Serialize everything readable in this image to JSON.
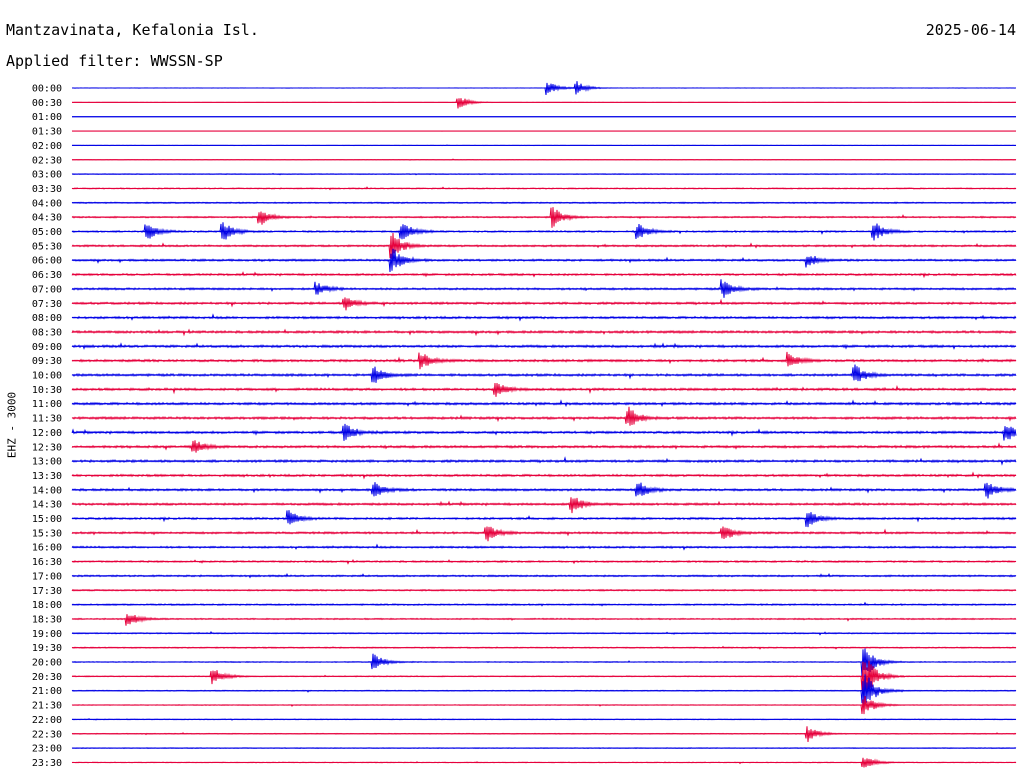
{
  "header": {
    "station": "Mantzavinata, Kefalonia Isl.",
    "date": "2025-06-14",
    "filter": "Applied filter: WWSSN-SP",
    "channel": "EHZ - 3000"
  },
  "colors": {
    "blue": "#0000e6",
    "red": "#e6003c"
  },
  "chart_data": {
    "type": "line",
    "plot_kind": "helicorder",
    "y_tick_labels": [
      "00:00",
      "00:30",
      "01:00",
      "01:30",
      "02:00",
      "02:30",
      "03:00",
      "03:30",
      "04:00",
      "04:30",
      "05:00",
      "05:30",
      "06:00",
      "06:30",
      "07:00",
      "07:30",
      "08:00",
      "08:30",
      "09:00",
      "09:30",
      "10:00",
      "10:30",
      "11:00",
      "11:30",
      "12:00",
      "12:30",
      "13:00",
      "13:30",
      "14:00",
      "14:30",
      "15:00",
      "15:30",
      "16:00",
      "16:30",
      "17:00",
      "17:30",
      "18:00",
      "18:30",
      "19:00",
      "19:30",
      "20:00",
      "20:30",
      "21:00",
      "21:30",
      "22:00",
      "22:30",
      "23:00",
      "23:30"
    ],
    "trace_colors_alternate": [
      "blue",
      "red"
    ],
    "trace_noise_level": [
      0.05,
      0.05,
      0.05,
      0.05,
      0.1,
      0.15,
      0.25,
      0.35,
      0.4,
      0.45,
      0.5,
      0.55,
      0.6,
      0.6,
      0.6,
      0.65,
      0.65,
      0.7,
      0.7,
      0.7,
      0.7,
      0.7,
      0.7,
      0.7,
      0.7,
      0.7,
      0.7,
      0.65,
      0.65,
      0.65,
      0.6,
      0.6,
      0.55,
      0.5,
      0.5,
      0.45,
      0.45,
      0.4,
      0.35,
      0.35,
      0.3,
      0.3,
      0.3,
      0.25,
      0.25,
      0.25,
      0.25,
      0.25
    ],
    "events": [
      {
        "row": 0,
        "x": 0.505,
        "amp": 1.0
      },
      {
        "row": 0,
        "x": 0.535,
        "amp": 1.0
      },
      {
        "row": 1,
        "x": 0.41,
        "amp": 1.0
      },
      {
        "row": 9,
        "x": 0.2,
        "amp": 1.2
      },
      {
        "row": 9,
        "x": 0.51,
        "amp": 1.5
      },
      {
        "row": 10,
        "x": 0.08,
        "amp": 1.3
      },
      {
        "row": 10,
        "x": 0.16,
        "amp": 1.5
      },
      {
        "row": 10,
        "x": 0.35,
        "amp": 1.5
      },
      {
        "row": 10,
        "x": 0.6,
        "amp": 1.2
      },
      {
        "row": 10,
        "x": 0.85,
        "amp": 1.4
      },
      {
        "row": 11,
        "x": 0.34,
        "amp": 2.0
      },
      {
        "row": 12,
        "x": 0.34,
        "amp": 1.8
      },
      {
        "row": 12,
        "x": 0.78,
        "amp": 1.0
      },
      {
        "row": 14,
        "x": 0.26,
        "amp": 1.0
      },
      {
        "row": 14,
        "x": 0.69,
        "amp": 1.5
      },
      {
        "row": 15,
        "x": 0.29,
        "amp": 1.0
      },
      {
        "row": 19,
        "x": 0.37,
        "amp": 1.2
      },
      {
        "row": 19,
        "x": 0.76,
        "amp": 1.2
      },
      {
        "row": 20,
        "x": 0.32,
        "amp": 1.3
      },
      {
        "row": 20,
        "x": 0.83,
        "amp": 1.4
      },
      {
        "row": 21,
        "x": 0.45,
        "amp": 1.1
      },
      {
        "row": 23,
        "x": 0.59,
        "amp": 1.6
      },
      {
        "row": 24,
        "x": 0.29,
        "amp": 1.2
      },
      {
        "row": 24,
        "x": 0.99,
        "amp": 1.5
      },
      {
        "row": 25,
        "x": 0.13,
        "amp": 1.1
      },
      {
        "row": 28,
        "x": 0.32,
        "amp": 1.2
      },
      {
        "row": 28,
        "x": 0.6,
        "amp": 1.3
      },
      {
        "row": 28,
        "x": 0.97,
        "amp": 1.3
      },
      {
        "row": 29,
        "x": 0.53,
        "amp": 1.4
      },
      {
        "row": 30,
        "x": 0.23,
        "amp": 1.2
      },
      {
        "row": 30,
        "x": 0.78,
        "amp": 1.2
      },
      {
        "row": 31,
        "x": 0.44,
        "amp": 1.2
      },
      {
        "row": 31,
        "x": 0.69,
        "amp": 1.3
      },
      {
        "row": 37,
        "x": 0.06,
        "amp": 1.0
      },
      {
        "row": 40,
        "x": 0.32,
        "amp": 1.3
      },
      {
        "row": 41,
        "x": 0.15,
        "amp": 1.3
      },
      {
        "row": 40,
        "x": 0.84,
        "amp": 2.5
      },
      {
        "row": 41,
        "x": 0.84,
        "amp": 3.5
      },
      {
        "row": 42,
        "x": 0.84,
        "amp": 3.0
      },
      {
        "row": 43,
        "x": 0.84,
        "amp": 1.5
      },
      {
        "row": 45,
        "x": 0.78,
        "amp": 1.2
      },
      {
        "row": 47,
        "x": 0.84,
        "amp": 1.0
      }
    ]
  }
}
